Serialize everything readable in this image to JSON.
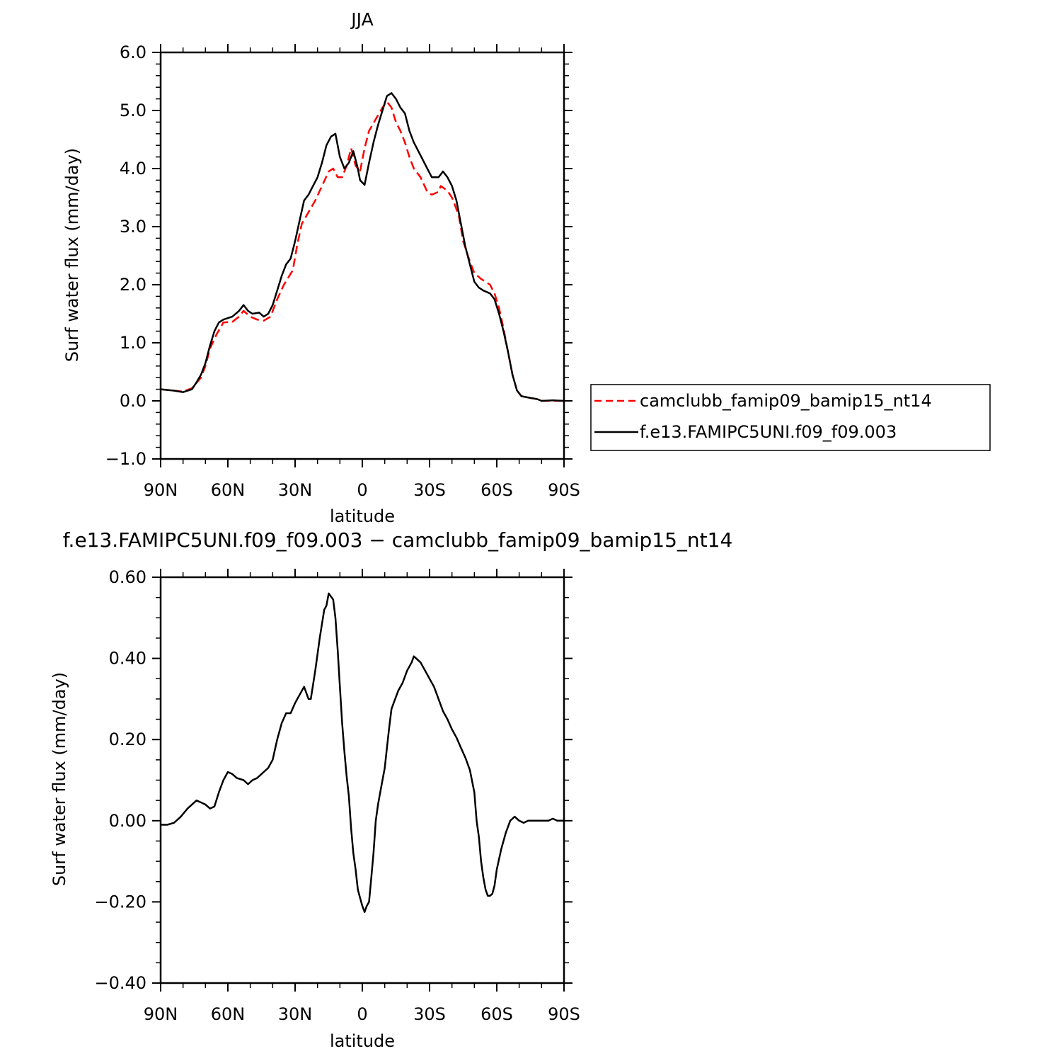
{
  "chart_data": [
    {
      "type": "line",
      "title": "JJA",
      "xlabel": "latitude",
      "ylabel": "Surf water flux (mm/day)",
      "xlim": [
        90,
        -90
      ],
      "ylim": [
        -1.0,
        6.0
      ],
      "xticks": [
        90,
        60,
        30,
        0,
        -30,
        -60,
        -90
      ],
      "xtick_labels": [
        "90N",
        "60N",
        "30N",
        "0",
        "30S",
        "60S",
        "90S"
      ],
      "yticks": [
        -1.0,
        0.0,
        1.0,
        2.0,
        3.0,
        4.0,
        5.0,
        6.0
      ],
      "ytick_labels": [
        "−1.0",
        "0.0",
        "1.0",
        "2.0",
        "3.0",
        "4.0",
        "5.0",
        "6.0"
      ],
      "grid": false,
      "legend": "right",
      "series": [
        {
          "name": "camclubb_famip09_bamip15_nt14",
          "color": "#ff0000",
          "dash": "dashed",
          "points": [
            [
              90,
              0.2
            ],
            [
              85,
              0.18
            ],
            [
              80,
              0.16
            ],
            [
              76,
              0.22
            ],
            [
              72,
              0.4
            ],
            [
              70,
              0.6
            ],
            [
              68,
              0.9
            ],
            [
              65,
              1.15
            ],
            [
              62,
              1.35
            ],
            [
              58,
              1.36
            ],
            [
              55,
              1.45
            ],
            [
              53,
              1.55
            ],
            [
              50,
              1.45
            ],
            [
              47,
              1.4
            ],
            [
              44,
              1.38
            ],
            [
              41,
              1.45
            ],
            [
              38,
              1.75
            ],
            [
              35,
              2.0
            ],
            [
              31,
              2.25
            ],
            [
              29,
              2.7
            ],
            [
              27,
              3.05
            ],
            [
              24,
              3.25
            ],
            [
              21,
              3.45
            ],
            [
              18,
              3.7
            ],
            [
              15,
              3.95
            ],
            [
              13,
              4.0
            ],
            [
              11,
              3.85
            ],
            [
              9,
              3.85
            ],
            [
              7,
              4.05
            ],
            [
              5,
              4.35
            ],
            [
              3,
              4.05
            ],
            [
              1,
              3.95
            ],
            [
              -1,
              4.35
            ],
            [
              -3,
              4.65
            ],
            [
              -6,
              4.85
            ],
            [
              -9,
              5.05
            ],
            [
              -11,
              5.15
            ],
            [
              -13,
              5.05
            ],
            [
              -15,
              4.8
            ],
            [
              -17,
              4.65
            ],
            [
              -19,
              4.45
            ],
            [
              -21,
              4.2
            ],
            [
              -23,
              4.0
            ],
            [
              -26,
              3.85
            ],
            [
              -29,
              3.6
            ],
            [
              -31,
              3.55
            ],
            [
              -34,
              3.6
            ],
            [
              -35,
              3.7
            ],
            [
              -38,
              3.62
            ],
            [
              -40,
              3.5
            ],
            [
              -43,
              3.2
            ],
            [
              -45,
              2.75
            ],
            [
              -48,
              2.4
            ],
            [
              -50,
              2.2
            ],
            [
              -53,
              2.1
            ],
            [
              -55,
              2.05
            ],
            [
              -57,
              2.0
            ],
            [
              -59,
              1.85
            ],
            [
              -61,
              1.6
            ],
            [
              -63,
              1.25
            ],
            [
              -65,
              0.85
            ],
            [
              -67,
              0.45
            ],
            [
              -69,
              0.18
            ],
            [
              -71,
              0.08
            ],
            [
              -75,
              0.05
            ],
            [
              -78,
              0.03
            ],
            [
              -80,
              0.0
            ],
            [
              -85,
              0.0
            ],
            [
              -90,
              0.0
            ]
          ]
        },
        {
          "name": "f.e13.FAMIPC5UNI.f09_f09.003",
          "color": "#000000",
          "dash": "solid",
          "points": [
            [
              90,
              0.2
            ],
            [
              85,
              0.18
            ],
            [
              80,
              0.15
            ],
            [
              76,
              0.2
            ],
            [
              74,
              0.32
            ],
            [
              72,
              0.45
            ],
            [
              70,
              0.65
            ],
            [
              68,
              0.95
            ],
            [
              66,
              1.2
            ],
            [
              64,
              1.35
            ],
            [
              62,
              1.4
            ],
            [
              58,
              1.45
            ],
            [
              55,
              1.55
            ],
            [
              53,
              1.65
            ],
            [
              51,
              1.55
            ],
            [
              49,
              1.5
            ],
            [
              46,
              1.52
            ],
            [
              44,
              1.45
            ],
            [
              42,
              1.5
            ],
            [
              40,
              1.65
            ],
            [
              38,
              1.9
            ],
            [
              36,
              2.15
            ],
            [
              34,
              2.35
            ],
            [
              32,
              2.45
            ],
            [
              30,
              2.75
            ],
            [
              28,
              3.1
            ],
            [
              26,
              3.45
            ],
            [
              24,
              3.55
            ],
            [
              22,
              3.7
            ],
            [
              20,
              3.85
            ],
            [
              18,
              4.1
            ],
            [
              16,
              4.4
            ],
            [
              14,
              4.55
            ],
            [
              12,
              4.6
            ],
            [
              10,
              4.2
            ],
            [
              8,
              4.0
            ],
            [
              6,
              4.1
            ],
            [
              4,
              4.3
            ],
            [
              2,
              4.0
            ],
            [
              1,
              3.8
            ],
            [
              -1,
              3.72
            ],
            [
              -3,
              4.1
            ],
            [
              -5,
              4.45
            ],
            [
              -7,
              4.75
            ],
            [
              -9,
              5.0
            ],
            [
              -11,
              5.25
            ],
            [
              -13,
              5.3
            ],
            [
              -15,
              5.2
            ],
            [
              -17,
              5.05
            ],
            [
              -19,
              4.95
            ],
            [
              -21,
              4.65
            ],
            [
              -23,
              4.45
            ],
            [
              -25,
              4.3
            ],
            [
              -27,
              4.15
            ],
            [
              -29,
              4.0
            ],
            [
              -31,
              3.85
            ],
            [
              -34,
              3.85
            ],
            [
              -36,
              3.95
            ],
            [
              -38,
              3.85
            ],
            [
              -40,
              3.7
            ],
            [
              -42,
              3.45
            ],
            [
              -44,
              3.05
            ],
            [
              -46,
              2.65
            ],
            [
              -48,
              2.35
            ],
            [
              -50,
              2.05
            ],
            [
              -52,
              1.95
            ],
            [
              -54,
              1.9
            ],
            [
              -57,
              1.85
            ],
            [
              -59,
              1.75
            ],
            [
              -61,
              1.5
            ],
            [
              -63,
              1.2
            ],
            [
              -65,
              0.85
            ],
            [
              -67,
              0.45
            ],
            [
              -69,
              0.18
            ],
            [
              -71,
              0.08
            ],
            [
              -75,
              0.05
            ],
            [
              -78,
              0.03
            ],
            [
              -80,
              0.0
            ],
            [
              -85,
              0.01
            ],
            [
              -90,
              0.0
            ]
          ]
        }
      ]
    },
    {
      "type": "line",
      "title": "f.e13.FAMIPC5UNI.f09_f09.003 − camclubb_famip09_bamip15_nt14",
      "xlabel": "latitude",
      "ylabel": "Surf water flux (mm/day)",
      "xlim": [
        90,
        -90
      ],
      "ylim": [
        -0.4,
        0.6
      ],
      "xticks": [
        90,
        60,
        30,
        0,
        -30,
        -60,
        -90
      ],
      "xtick_labels": [
        "90N",
        "60N",
        "30N",
        "0",
        "30S",
        "60S",
        "90S"
      ],
      "yticks": [
        -0.4,
        -0.2,
        0.0,
        0.2,
        0.4,
        0.6
      ],
      "ytick_labels": [
        "−0.40",
        "−0.20",
        "0.00",
        "0.20",
        "0.40",
        "0.60"
      ],
      "grid": false,
      "series": [
        {
          "color": "#000000",
          "dash": "solid",
          "points": [
            [
              90,
              -0.01
            ],
            [
              87,
              -0.01
            ],
            [
              84,
              -0.005
            ],
            [
              81,
              0.01
            ],
            [
              78,
              0.03
            ],
            [
              76,
              0.04
            ],
            [
              74,
              0.05
            ],
            [
              72,
              0.045
            ],
            [
              70,
              0.04
            ],
            [
              68,
              0.03
            ],
            [
              66,
              0.035
            ],
            [
              64,
              0.07
            ],
            [
              62,
              0.1
            ],
            [
              60,
              0.12
            ],
            [
              58,
              0.115
            ],
            [
              56,
              0.105
            ],
            [
              53,
              0.1
            ],
            [
              51,
              0.09
            ],
            [
              49,
              0.1
            ],
            [
              47,
              0.105
            ],
            [
              44,
              0.12
            ],
            [
              42,
              0.13
            ],
            [
              40,
              0.15
            ],
            [
              38,
              0.2
            ],
            [
              36,
              0.24
            ],
            [
              34,
              0.265
            ],
            [
              32,
              0.265
            ],
            [
              30,
              0.29
            ],
            [
              28,
              0.31
            ],
            [
              26,
              0.33
            ],
            [
              24,
              0.3
            ],
            [
              23,
              0.3
            ],
            [
              21,
              0.37
            ],
            [
              19,
              0.45
            ],
            [
              17,
              0.52
            ],
            [
              16,
              0.53
            ],
            [
              15,
              0.56
            ],
            [
              13,
              0.545
            ],
            [
              12,
              0.5
            ],
            [
              11,
              0.42
            ],
            [
              10,
              0.33
            ],
            [
              9,
              0.24
            ],
            [
              8,
              0.17
            ],
            [
              7,
              0.11
            ],
            [
              6,
              0.06
            ],
            [
              5,
              -0.02
            ],
            [
              4,
              -0.08
            ],
            [
              3,
              -0.12
            ],
            [
              2,
              -0.17
            ],
            [
              1,
              -0.19
            ],
            [
              0,
              -0.21
            ],
            [
              -1,
              -0.225
            ],
            [
              -2,
              -0.21
            ],
            [
              -3,
              -0.2
            ],
            [
              -4,
              -0.14
            ],
            [
              -5,
              -0.08
            ],
            [
              -6,
              0.0
            ],
            [
              -7,
              0.04
            ],
            [
              -8,
              0.07
            ],
            [
              -9,
              0.1
            ],
            [
              -10,
              0.13
            ],
            [
              -11,
              0.18
            ],
            [
              -12,
              0.23
            ],
            [
              -13,
              0.275
            ],
            [
              -14,
              0.29
            ],
            [
              -16,
              0.32
            ],
            [
              -18,
              0.34
            ],
            [
              -20,
              0.37
            ],
            [
              -22,
              0.39
            ],
            [
              -23,
              0.405
            ],
            [
              -24,
              0.4
            ],
            [
              -26,
              0.39
            ],
            [
              -28,
              0.37
            ],
            [
              -30,
              0.35
            ],
            [
              -32,
              0.33
            ],
            [
              -34,
              0.3
            ],
            [
              -36,
              0.27
            ],
            [
              -38,
              0.25
            ],
            [
              -40,
              0.225
            ],
            [
              -42,
              0.205
            ],
            [
              -44,
              0.18
            ],
            [
              -46,
              0.155
            ],
            [
              -48,
              0.125
            ],
            [
              -50,
              0.07
            ],
            [
              -51,
              0.0
            ],
            [
              -52,
              -0.04
            ],
            [
              -53,
              -0.1
            ],
            [
              -54,
              -0.14
            ],
            [
              -55,
              -0.17
            ],
            [
              -56,
              -0.185
            ],
            [
              -57,
              -0.185
            ],
            [
              -58,
              -0.18
            ],
            [
              -59,
              -0.16
            ],
            [
              -60,
              -0.12
            ],
            [
              -62,
              -0.07
            ],
            [
              -64,
              -0.03
            ],
            [
              -66,
              0.0
            ],
            [
              -68,
              0.01
            ],
            [
              -70,
              0.0
            ],
            [
              -72,
              -0.005
            ],
            [
              -74,
              0.0
            ],
            [
              -77,
              0.0
            ],
            [
              -80,
              0.0
            ],
            [
              -83,
              0.0
            ],
            [
              -85,
              0.005
            ],
            [
              -87,
              0.0
            ],
            [
              -90,
              0.0
            ]
          ]
        }
      ]
    }
  ]
}
